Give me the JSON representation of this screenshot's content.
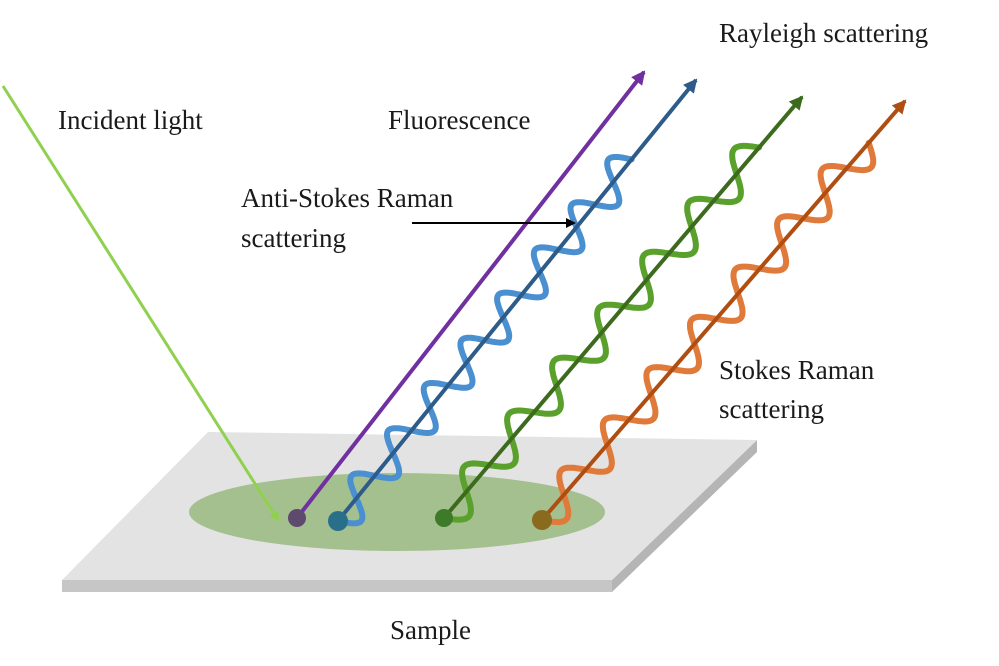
{
  "labels": {
    "incident_light": "Incident light",
    "fluorescence": "Fluorescence",
    "rayleigh": "Rayleigh scattering",
    "anti_stokes_line1": "Anti-Stokes Raman",
    "anti_stokes_line2": "scattering",
    "stokes_line1": "Stokes Raman",
    "stokes_line2": "scattering",
    "sample": "Sample"
  },
  "colors": {
    "incident": "#8fd14f",
    "fluorescence": "#7030a0",
    "rayleigh_wave": "#4a8fd0",
    "rayleigh_arrow": "#2e5c8a",
    "anti_stokes_wave": "#5aa02c",
    "anti_stokes_arrow": "#3d6b1e",
    "stokes_wave": "#e07a3a",
    "stokes_arrow": "#b04e12",
    "spot": "#9dbb85",
    "plate_top": "#e3e3e3",
    "plate_side": "#c6c6c6",
    "pointer": "#000000"
  }
}
